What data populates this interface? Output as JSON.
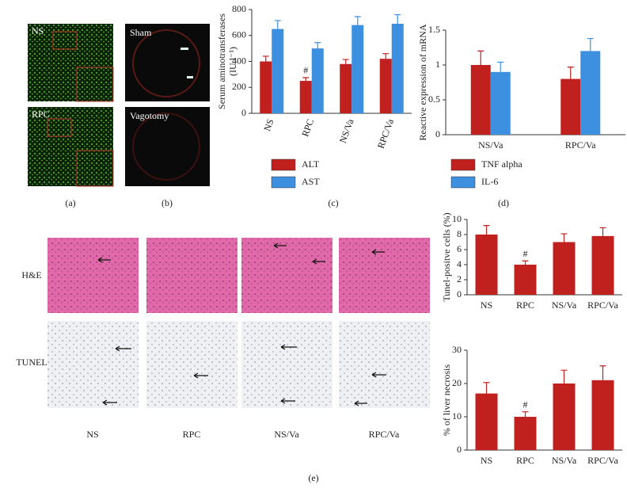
{
  "chart_data": [
    {
      "type": "bar",
      "y_label": [
        "Serum aminotransferases",
        "(IU l⁻¹)"
      ],
      "categories": [
        "NS",
        "RPC",
        "NS/Va",
        "RPC/Va"
      ],
      "ylim": [
        0,
        800
      ],
      "yticks": [
        0,
        200,
        400,
        600,
        800
      ],
      "series": [
        {
          "name": "ALT",
          "color": "#c0201e",
          "values": [
            400,
            250,
            380,
            420
          ],
          "errors": [
            40,
            25,
            35,
            40
          ]
        },
        {
          "name": "AST",
          "color": "#3d8fe0",
          "values": [
            650,
            500,
            680,
            690
          ],
          "errors": [
            65,
            45,
            65,
            70
          ]
        }
      ],
      "annotations": [
        {
          "text": "#",
          "x": "RPC"
        }
      ]
    },
    {
      "type": "bar",
      "y_label": [
        "Reactive expression of mRNA"
      ],
      "categories": [
        "NS/Va",
        "RPC/Va"
      ],
      "ylim": [
        0,
        1.5
      ],
      "yticks": [
        0,
        0.5,
        1,
        1.5
      ],
      "series": [
        {
          "name": "TNF alpha",
          "color": "#c0201e",
          "values": [
            1.0,
            0.8
          ],
          "errors": [
            0.2,
            0.17
          ]
        },
        {
          "name": "IL-6",
          "color": "#3d8fe0",
          "values": [
            0.9,
            1.2
          ],
          "errors": [
            0.14,
            0.18
          ]
        }
      ]
    },
    {
      "type": "bar",
      "y_label": [
        "Tunel-positve cells (%)"
      ],
      "categories": [
        "NS",
        "RPC",
        "NS/Va",
        "RPC/Va"
      ],
      "ylim": [
        0,
        10
      ],
      "yticks": [
        0,
        2,
        4,
        6,
        8,
        10
      ],
      "series": [
        {
          "color": "#c0201e",
          "values": [
            8,
            4,
            7,
            7.8
          ],
          "errors": [
            1.2,
            0.5,
            1.1,
            1.1
          ]
        }
      ],
      "annotations": [
        {
          "text": "#",
          "x": "RPC"
        }
      ]
    },
    {
      "type": "bar",
      "y_label": [
        "% of liver necrosis"
      ],
      "categories": [
        "NS",
        "RPC",
        "NS/Va",
        "RPC/Va"
      ],
      "ylim": [
        0,
        30
      ],
      "yticks": [
        0,
        10,
        20,
        30
      ],
      "series": [
        {
          "color": "#c0201e",
          "values": [
            17,
            10,
            20,
            21
          ],
          "errors": [
            3.3,
            1.5,
            4,
            4.3
          ]
        }
      ],
      "annotations": [
        {
          "text": "#",
          "x": "RPC"
        }
      ]
    }
  ],
  "panel_labels": [
    "(a)",
    "(b)",
    "(c)",
    "(d)",
    "(e)"
  ],
  "image_labels": {
    "a": [
      "NS",
      "RPC"
    ],
    "b": [
      "Sham",
      "Vagotomy"
    ],
    "e_rows": [
      "H&E",
      "TUNEL"
    ],
    "e_columns": [
      "NS",
      "RPC",
      "NS/Va",
      "RPC/Va"
    ]
  }
}
